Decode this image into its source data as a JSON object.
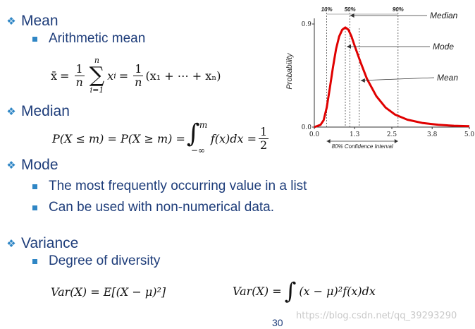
{
  "bullets": {
    "mean": "Mean",
    "arithmetic_mean": "Arithmetic mean",
    "median": "Median",
    "mode": "Mode",
    "mode_sub1": "The most frequently occurring value in a list",
    "mode_sub2": "Can be used with non-numerical data.",
    "variance": "Variance",
    "variance_sub1": "Degree of diversity"
  },
  "formulas": {
    "mean_lhs": "x̄",
    "mean_eq": "=",
    "mean_frac_num": "1",
    "mean_frac_den": "n",
    "mean_sum_sym": "∑",
    "mean_sum_upper": "n",
    "mean_sum_lower": "i=1",
    "mean_term": "x",
    "mean_term_sub": "i",
    "mean_rhs": "(x₁ + ⋯ + xₙ)",
    "median_lhs": "P(X ≤ m) = P(X ≥ m) =",
    "median_int_upper": "m",
    "median_int_lower": "−∞",
    "median_integrand": "f(x)dx =",
    "median_frac_num": "1",
    "median_frac_den": "2",
    "var_left": "Var(X) = E[(X − μ)²]",
    "var_right_lhs": "Var(X) =",
    "var_right_integrand": "(x − μ)²f(x)dx"
  },
  "chart_data": {
    "type": "line",
    "ylabel": "Probability",
    "x_ticks": [
      "0.0",
      "1.3",
      "2.5",
      "3.8",
      "5.0"
    ],
    "x_tick_values": [
      0.0,
      1.3,
      2.5,
      3.8,
      5.0
    ],
    "y_ticks": [
      "0.0",
      "0.9"
    ],
    "y_tick_values": [
      0.0,
      0.9
    ],
    "xlim": [
      0.0,
      5.0
    ],
    "ylim": [
      0.0,
      0.9
    ],
    "percent_labels": [
      "10%",
      "50%",
      "90%"
    ],
    "percentile_values": [
      0.4,
      1.15,
      2.7
    ],
    "annotations": [
      "Median",
      "Mode",
      "Mean"
    ],
    "median": 1.15,
    "mode": 1.0,
    "mean": 1.45,
    "interval_label": "80% Confidence Interval",
    "curve": {
      "x": [
        0.0,
        0.2,
        0.3,
        0.4,
        0.5,
        0.6,
        0.7,
        0.8,
        0.9,
        1.0,
        1.1,
        1.2,
        1.3,
        1.5,
        1.7,
        2.0,
        2.3,
        2.6,
        3.0,
        3.5,
        4.0,
        4.5,
        5.0
      ],
      "y": [
        0.0,
        0.02,
        0.06,
        0.17,
        0.34,
        0.52,
        0.68,
        0.79,
        0.85,
        0.87,
        0.85,
        0.79,
        0.71,
        0.56,
        0.42,
        0.27,
        0.17,
        0.11,
        0.065,
        0.035,
        0.02,
        0.012,
        0.008
      ]
    },
    "curve_color": "#e00000"
  },
  "footer": {
    "page_number": "30",
    "watermark": "https://blog.csdn.net/qq_39293290"
  }
}
